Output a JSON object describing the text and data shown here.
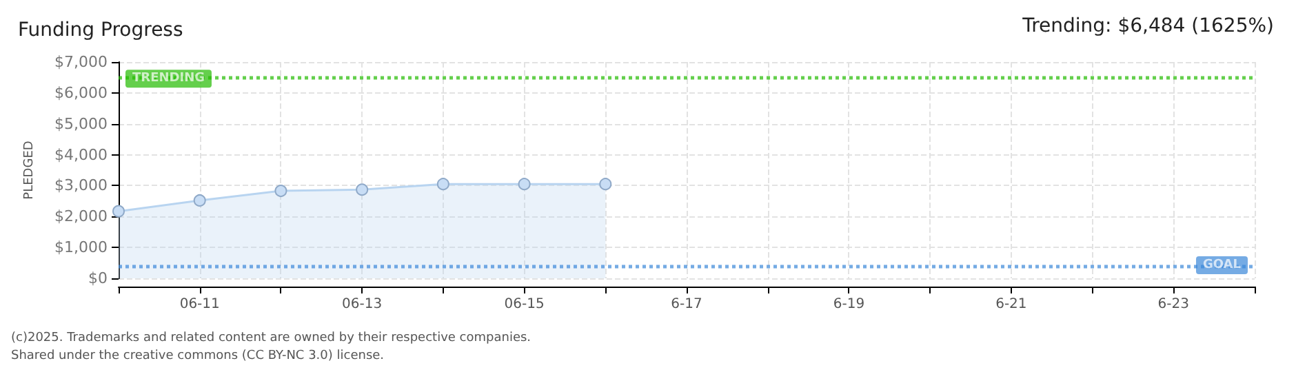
{
  "chart_data": {
    "type": "area",
    "title": "Funding Progress",
    "ylabel": "PLEDGED",
    "annotations": [
      "Trending: $6,484 (1625%)",
      "(c)2025. Trademarks and related content are owned by their respective companies.",
      "Shared under the creative commons (CC BY-NC 3.0) license."
    ],
    "categories": [
      null,
      "06-11",
      null,
      "06-13",
      null,
      "06-15",
      null,
      "6-17",
      null,
      "6-19",
      null,
      "6-21",
      null,
      "6-23",
      null
    ],
    "series": [
      {
        "color": "#b8d4f0",
        "values": [
          2170,
          2520,
          2830,
          2870,
          3050,
          3050,
          3050,
          null,
          null,
          null,
          null,
          null,
          null,
          null,
          null
        ]
      }
    ],
    "ylim": [
      0,
      7000
    ],
    "yticks": [
      {
        "value": 0,
        "label": "$0"
      },
      {
        "value": 1000,
        "label": "$1,000"
      },
      {
        "value": 2000,
        "label": "$2,000"
      },
      {
        "value": 3000,
        "label": "$3,000"
      },
      {
        "value": 4000,
        "label": "$4,000"
      },
      {
        "value": 5000,
        "label": "$5,000"
      },
      {
        "value": 6000,
        "label": "$6,000"
      },
      {
        "value": 7000,
        "label": "$7,000"
      }
    ],
    "ref_lines": [
      {
        "axis": "y",
        "value": 6484,
        "label": "TRENDING",
        "color": "#22bb00",
        "line_style": "dotted"
      },
      {
        "axis": "y",
        "value": 400,
        "label": "GOAL",
        "color": "#3a87d8",
        "line_style": "dotted"
      }
    ],
    "grid": true,
    "marker": "circle"
  }
}
